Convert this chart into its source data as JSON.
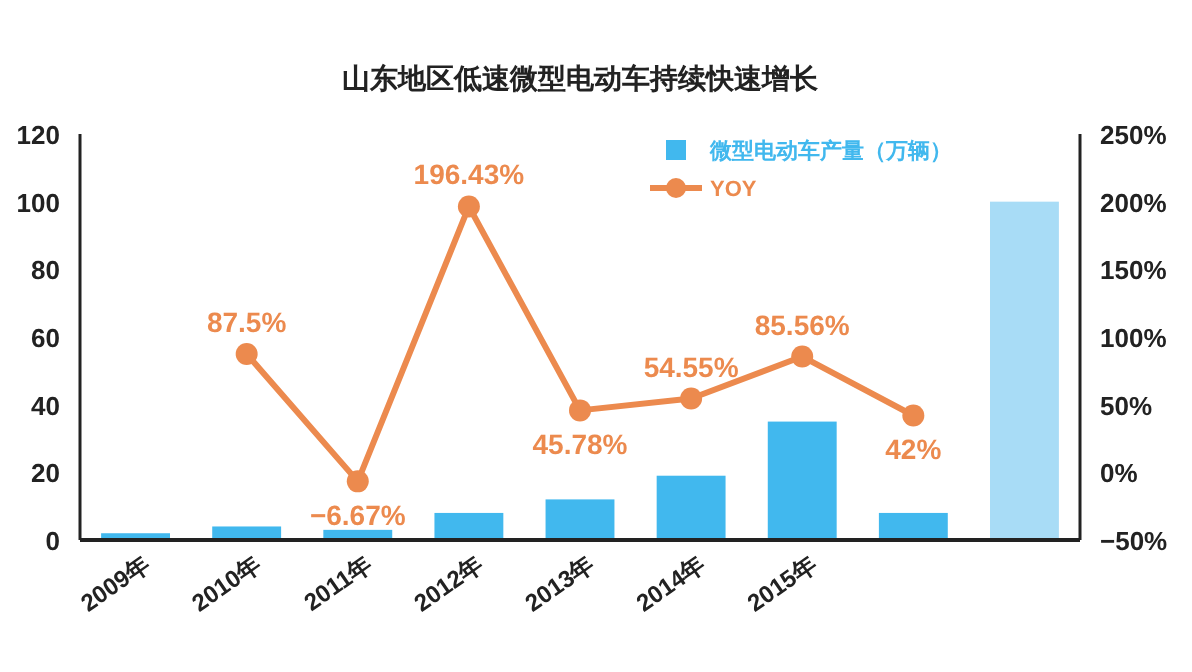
{
  "chart_data": {
    "type": "bar",
    "title": "山东地区低速微型电动车持续快速增长",
    "categories": [
      "2009年",
      "2010年",
      "2011年",
      "2012年",
      "2013年",
      "2014年",
      "2015年",
      null,
      null
    ],
    "series": [
      {
        "name": "微型电动车产量（万辆）",
        "color": "#41b8ee",
        "colors": [
          "#41b8ee",
          "#41b8ee",
          "#41b8ee",
          "#41b8ee",
          "#41b8ee",
          "#41b8ee",
          "#41b8ee",
          "#41b8ee",
          "#a8dcf6"
        ],
        "values": [
          2,
          4,
          3,
          8,
          12,
          19,
          35,
          8,
          100
        ]
      },
      {
        "name": "YOY",
        "type": "line",
        "axis": "y2",
        "color": "#ec8a4e",
        "marker": "circle",
        "values": [
          null,
          87.5,
          -6.67,
          196.43,
          45.78,
          54.55,
          85.56,
          42,
          null
        ],
        "value_labels": [
          null,
          "87.5%",
          "−6.67%",
          "196.43%",
          "45.78%",
          "54.55%",
          "85.56%",
          "42%",
          null
        ]
      }
    ],
    "ylim": [
      0,
      120
    ],
    "yticks": [
      0,
      20,
      40,
      60,
      80,
      100,
      120
    ],
    "y2lim": [
      -50,
      250
    ],
    "y2ticks": [
      {
        "value": -50,
        "label": "−50%"
      },
      {
        "value": 0,
        "label": "0%"
      },
      {
        "value": 50,
        "label": "50%"
      },
      {
        "value": 100,
        "label": "100%"
      },
      {
        "value": 150,
        "label": "150%"
      },
      {
        "value": 200,
        "label": "200%"
      },
      {
        "value": 250,
        "label": "250%"
      }
    ],
    "legend": "top right",
    "grid": false
  }
}
